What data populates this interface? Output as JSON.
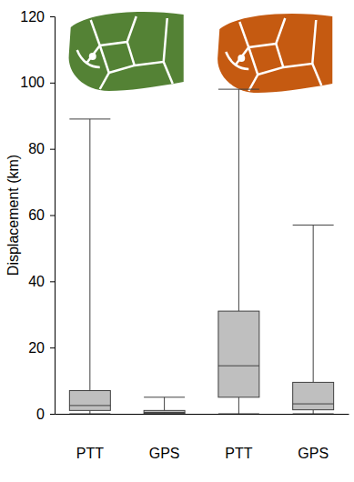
{
  "chart_data": {
    "type": "box",
    "y_label": "Displacement (km)",
    "categories": [
      "PTT",
      "GPS",
      "PTT",
      "GPS"
    ],
    "min": [
      0,
      0,
      0,
      0
    ],
    "q1": [
      1,
      0.1,
      5,
      1.2
    ],
    "median": [
      2.5,
      0.4,
      14.5,
      3
    ],
    "q3": [
      7,
      1,
      31,
      9.5
    ],
    "max": [
      89,
      5,
      98,
      57
    ],
    "color": "#bfbfbf",
    "ylim": [
      0,
      120
    ],
    "yticks": [
      0,
      20,
      40,
      60,
      80,
      100,
      120
    ],
    "grid": false
  }
}
